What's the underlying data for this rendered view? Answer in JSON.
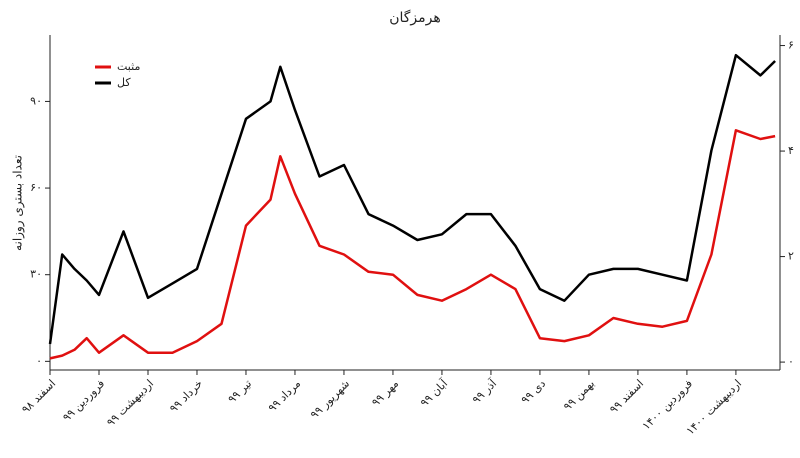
{
  "chart_data": {
    "type": "line",
    "title": "هرمزگان",
    "y_label": "تعداد بستری روزانه",
    "x": [
      0,
      0.25,
      0.5,
      0.75,
      1,
      1.5,
      2,
      2.5,
      3,
      3.5,
      4,
      4.5,
      4.7,
      5,
      5.5,
      6,
      6.5,
      7,
      7.5,
      8,
      8.5,
      9,
      9.5,
      10,
      10.5,
      11,
      11.5,
      12,
      12.5,
      13,
      13.5,
      14,
      14.5,
      14.8
    ],
    "series": [
      {
        "name": "مثبت",
        "color": "#e01010",
        "values": [
          1,
          2,
          4,
          8,
          3,
          9,
          3,
          3,
          7,
          13,
          47,
          56,
          71,
          58,
          40,
          37,
          31,
          30,
          23,
          21,
          25,
          30,
          25,
          8,
          7,
          9,
          15,
          13,
          12,
          14,
          37,
          80,
          77,
          78
        ]
      },
      {
        "name": "کل",
        "color": "#000000",
        "values": [
          6,
          37,
          32,
          28,
          23,
          45,
          22,
          27,
          32,
          58,
          84,
          90,
          102,
          87,
          64,
          68,
          51,
          47,
          42,
          44,
          51,
          51,
          40,
          25,
          21,
          30,
          32,
          32,
          30,
          28,
          73,
          106,
          99,
          104
        ]
      }
    ],
    "xlim": [
      0,
      14.9
    ],
    "xticks": [
      {
        "value": 0,
        "label": "اسفند ۹۸"
      },
      {
        "value": 1,
        "label": "فروردین ۹۹"
      },
      {
        "value": 2,
        "label": "اردیبهشت ۹۹"
      },
      {
        "value": 3,
        "label": "خرداد ۹۹"
      },
      {
        "value": 4,
        "label": "تیر ۹۹"
      },
      {
        "value": 5,
        "label": "مرداد ۹۹"
      },
      {
        "value": 6,
        "label": "شهریور ۹۹"
      },
      {
        "value": 7,
        "label": "مهر ۹۹"
      },
      {
        "value": 8,
        "label": "آبان ۹۹"
      },
      {
        "value": 9,
        "label": "آذر ۹۹"
      },
      {
        "value": 10,
        "label": "دی ۹۹"
      },
      {
        "value": 11,
        "label": "بهمن ۹۹"
      },
      {
        "value": 12,
        "label": "اسفند ۹۹"
      },
      {
        "value": 13,
        "label": "فروردین ۱۴۰۰"
      },
      {
        "value": 14,
        "label": "اردیبهشت ۱۴۰۰"
      }
    ],
    "ylim": [
      -3,
      113
    ],
    "yticks": [
      {
        "value": 0,
        "label": "۰"
      },
      {
        "value": 30,
        "label": "۳۰"
      },
      {
        "value": 60,
        "label": "۶۰"
      },
      {
        "value": 90,
        "label": "۹۰"
      }
    ],
    "y2lim": [
      -0.15,
      6.2
    ],
    "y2ticks": [
      {
        "value": 0,
        "label": "۰"
      },
      {
        "value": 2,
        "label": "۲"
      },
      {
        "value": 4,
        "label": "۴"
      },
      {
        "value": 6,
        "label": "۶"
      }
    ],
    "grid": false,
    "legend_position": "upper-left"
  }
}
